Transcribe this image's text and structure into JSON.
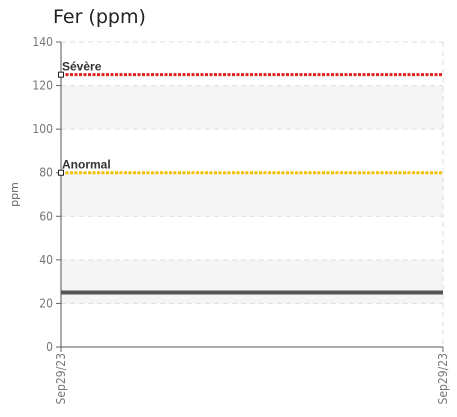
{
  "chart_data": {
    "type": "line",
    "title": "Fer (ppm)",
    "xlabel": "",
    "ylabel": "ppm",
    "x_tick_labels": [
      "Sep29/23",
      "Sep29/23"
    ],
    "ylim": [
      0,
      140
    ],
    "y_ticks": [
      0,
      20,
      40,
      60,
      80,
      100,
      120,
      140
    ],
    "grid": true,
    "series": [
      {
        "name": "",
        "color": "#555555",
        "values": [
          25,
          25
        ]
      }
    ],
    "thresholds": [
      {
        "label": "Sévère",
        "value": 125,
        "color": "#e0201c"
      },
      {
        "label": "Anormal",
        "value": 80,
        "color": "#f2c200"
      }
    ]
  }
}
